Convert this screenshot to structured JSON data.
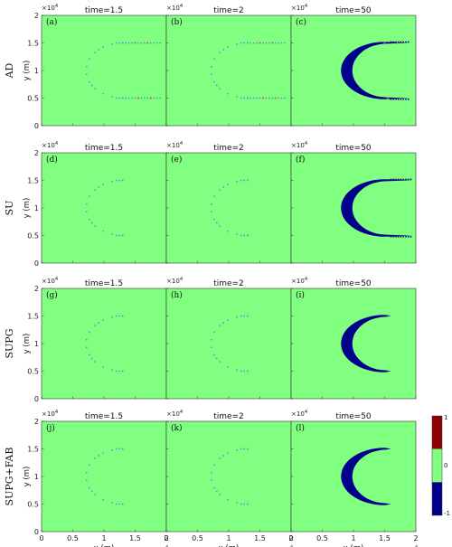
{
  "figure": {
    "schemes": [
      "AD",
      "SU",
      "SUPG",
      "SUPG+FAB"
    ],
    "times": [
      "time=1.5",
      "time=2",
      "time=50"
    ],
    "panel_labels": [
      "(a)",
      "(b)",
      "(c)",
      "(d)",
      "(e)",
      "(f)",
      "(g)",
      "(h)",
      "(i)",
      "(j)",
      "(k)",
      "(l)"
    ],
    "xlabel": "x (m)",
    "ylabel": "y (m)",
    "x_multiplier": "×10",
    "x_multiplier_exp": "4",
    "y_multiplier": "×10",
    "y_multiplier_exp": "4",
    "x_ticks": [
      "0",
      "0.5",
      "1",
      "1.5",
      "2"
    ],
    "y_ticks": [
      "0",
      "0.5",
      "1",
      "1.5",
      "2"
    ],
    "colorbar_ticks": [
      "1",
      "0",
      "-1"
    ],
    "colors": {
      "positive": "#8b0000",
      "zero": "#80ff80",
      "negative": "#00008b",
      "front": "#3b8cf0",
      "hot": "#e05a1a"
    }
  },
  "chart_data": {
    "type": "heatmap",
    "xlabel": "x (m)",
    "ylabel": "y (m)",
    "xlim": [
      0,
      20000
    ],
    "ylim": [
      0,
      20000
    ],
    "colorbar": {
      "min": -1,
      "max": 1,
      "levels": [
        -1,
        0,
        1
      ]
    },
    "rows": [
      {
        "scheme": "AD",
        "panels": [
          {
            "label": "(a)",
            "time": 1.5,
            "front": "thin",
            "arm_end_x": 19000,
            "hot_spots": true
          },
          {
            "label": "(b)",
            "time": 2,
            "front": "thin",
            "arm_end_x": 19000,
            "hot_spots": true
          },
          {
            "label": "(c)",
            "time": 50,
            "front": "band",
            "arm_end_x": 19000,
            "hot_spots": true
          }
        ]
      },
      {
        "scheme": "SU",
        "panels": [
          {
            "label": "(d)",
            "time": 1.5,
            "front": "thin",
            "arm_end_x": 13000,
            "hot_spots": false
          },
          {
            "label": "(e)",
            "time": 2,
            "front": "thin",
            "arm_end_x": 13000,
            "hot_spots": false
          },
          {
            "label": "(f)",
            "time": 50,
            "front": "band",
            "arm_end_x": 19500,
            "hot_spots": false
          }
        ]
      },
      {
        "scheme": "SUPG",
        "panels": [
          {
            "label": "(g)",
            "time": 1.5,
            "front": "thin",
            "arm_end_x": 13000,
            "hot_spots": false
          },
          {
            "label": "(h)",
            "time": 2,
            "front": "thin",
            "arm_end_x": 13000,
            "hot_spots": false
          },
          {
            "label": "(i)",
            "time": 50,
            "front": "band",
            "arm_end_x": 16000,
            "hot_spots": false
          }
        ]
      },
      {
        "scheme": "SUPG+FAB",
        "panels": [
          {
            "label": "(j)",
            "time": 1.5,
            "front": "thin",
            "arm_end_x": 13000,
            "hot_spots": false
          },
          {
            "label": "(k)",
            "time": 2,
            "front": "thin",
            "arm_end_x": 13000,
            "hot_spots": false
          },
          {
            "label": "(l)",
            "time": 50,
            "front": "band",
            "arm_end_x": 16000,
            "hot_spots": false
          }
        ]
      }
    ]
  }
}
